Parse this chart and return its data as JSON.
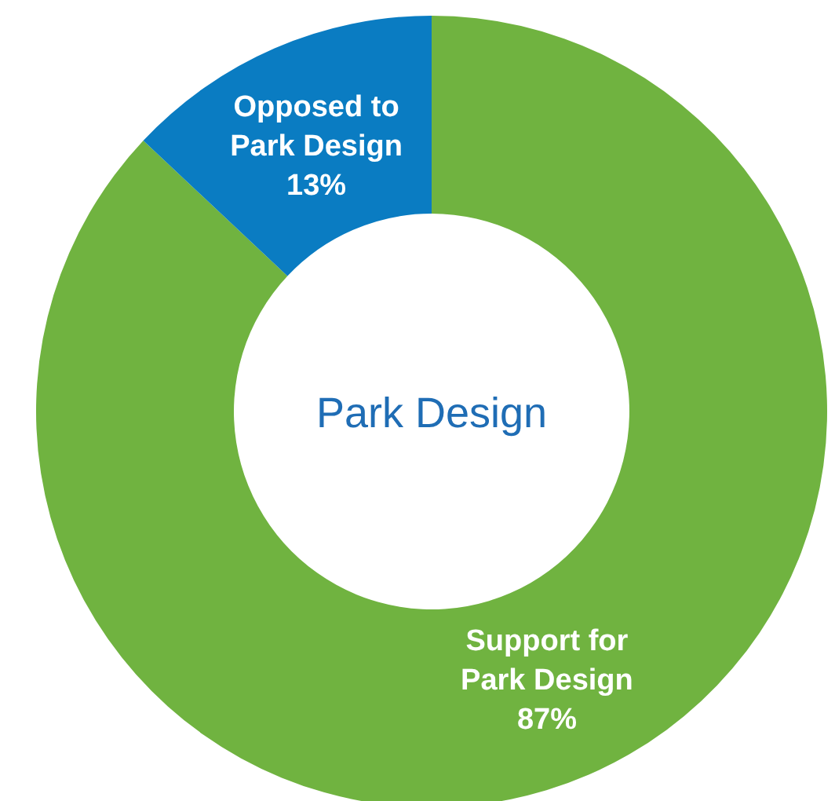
{
  "chart_data": {
    "type": "donut",
    "title": "Park Design",
    "categories": [
      "Support for Park Design",
      "Opposed to Park Design"
    ],
    "values": [
      87,
      13
    ],
    "colors": [
      "#70b340",
      "#0a7cc2"
    ],
    "value_labels": [
      "87%",
      "13%"
    ]
  }
}
